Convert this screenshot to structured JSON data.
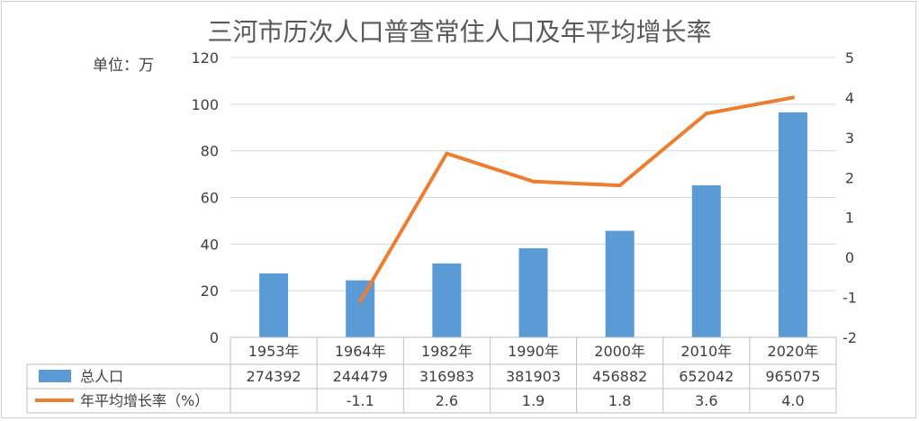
{
  "chart_data": {
    "type": "bar+line",
    "title": "三河市历次人口普查常住人口及年平均增长率",
    "unit_label": "单位：万",
    "categories": [
      "1953年",
      "1964年",
      "1982年",
      "1990年",
      "2000年",
      "2010年",
      "2020年"
    ],
    "y_left": {
      "range": [
        0,
        120
      ],
      "ticks": [
        "0",
        "20",
        "40",
        "60",
        "80",
        "100",
        "120"
      ]
    },
    "y_right": {
      "range": [
        -2,
        5
      ],
      "ticks": [
        "-2",
        "-1",
        "0",
        "1",
        "2",
        "3",
        "4",
        "5"
      ]
    },
    "grid": true,
    "legend_placement": "data-table",
    "series": [
      {
        "name": "总人口",
        "type": "bar",
        "axis": "left",
        "color": "#5b9bd5",
        "values": [
          27.4392,
          24.4479,
          31.6983,
          38.1903,
          45.6882,
          65.2042,
          96.5075
        ],
        "table_values": [
          "274392",
          "244479",
          "316983",
          "381903",
          "456882",
          "652042",
          "965075"
        ]
      },
      {
        "name": "年平均增长率（%）",
        "type": "line",
        "axis": "right",
        "color": "#ed7d31",
        "values": [
          null,
          -1.1,
          2.6,
          1.9,
          1.8,
          3.6,
          4.0
        ],
        "table_values": [
          "",
          "-1.1",
          "2.6",
          "1.9",
          "1.8",
          "3.6",
          "4.0"
        ]
      }
    ]
  }
}
